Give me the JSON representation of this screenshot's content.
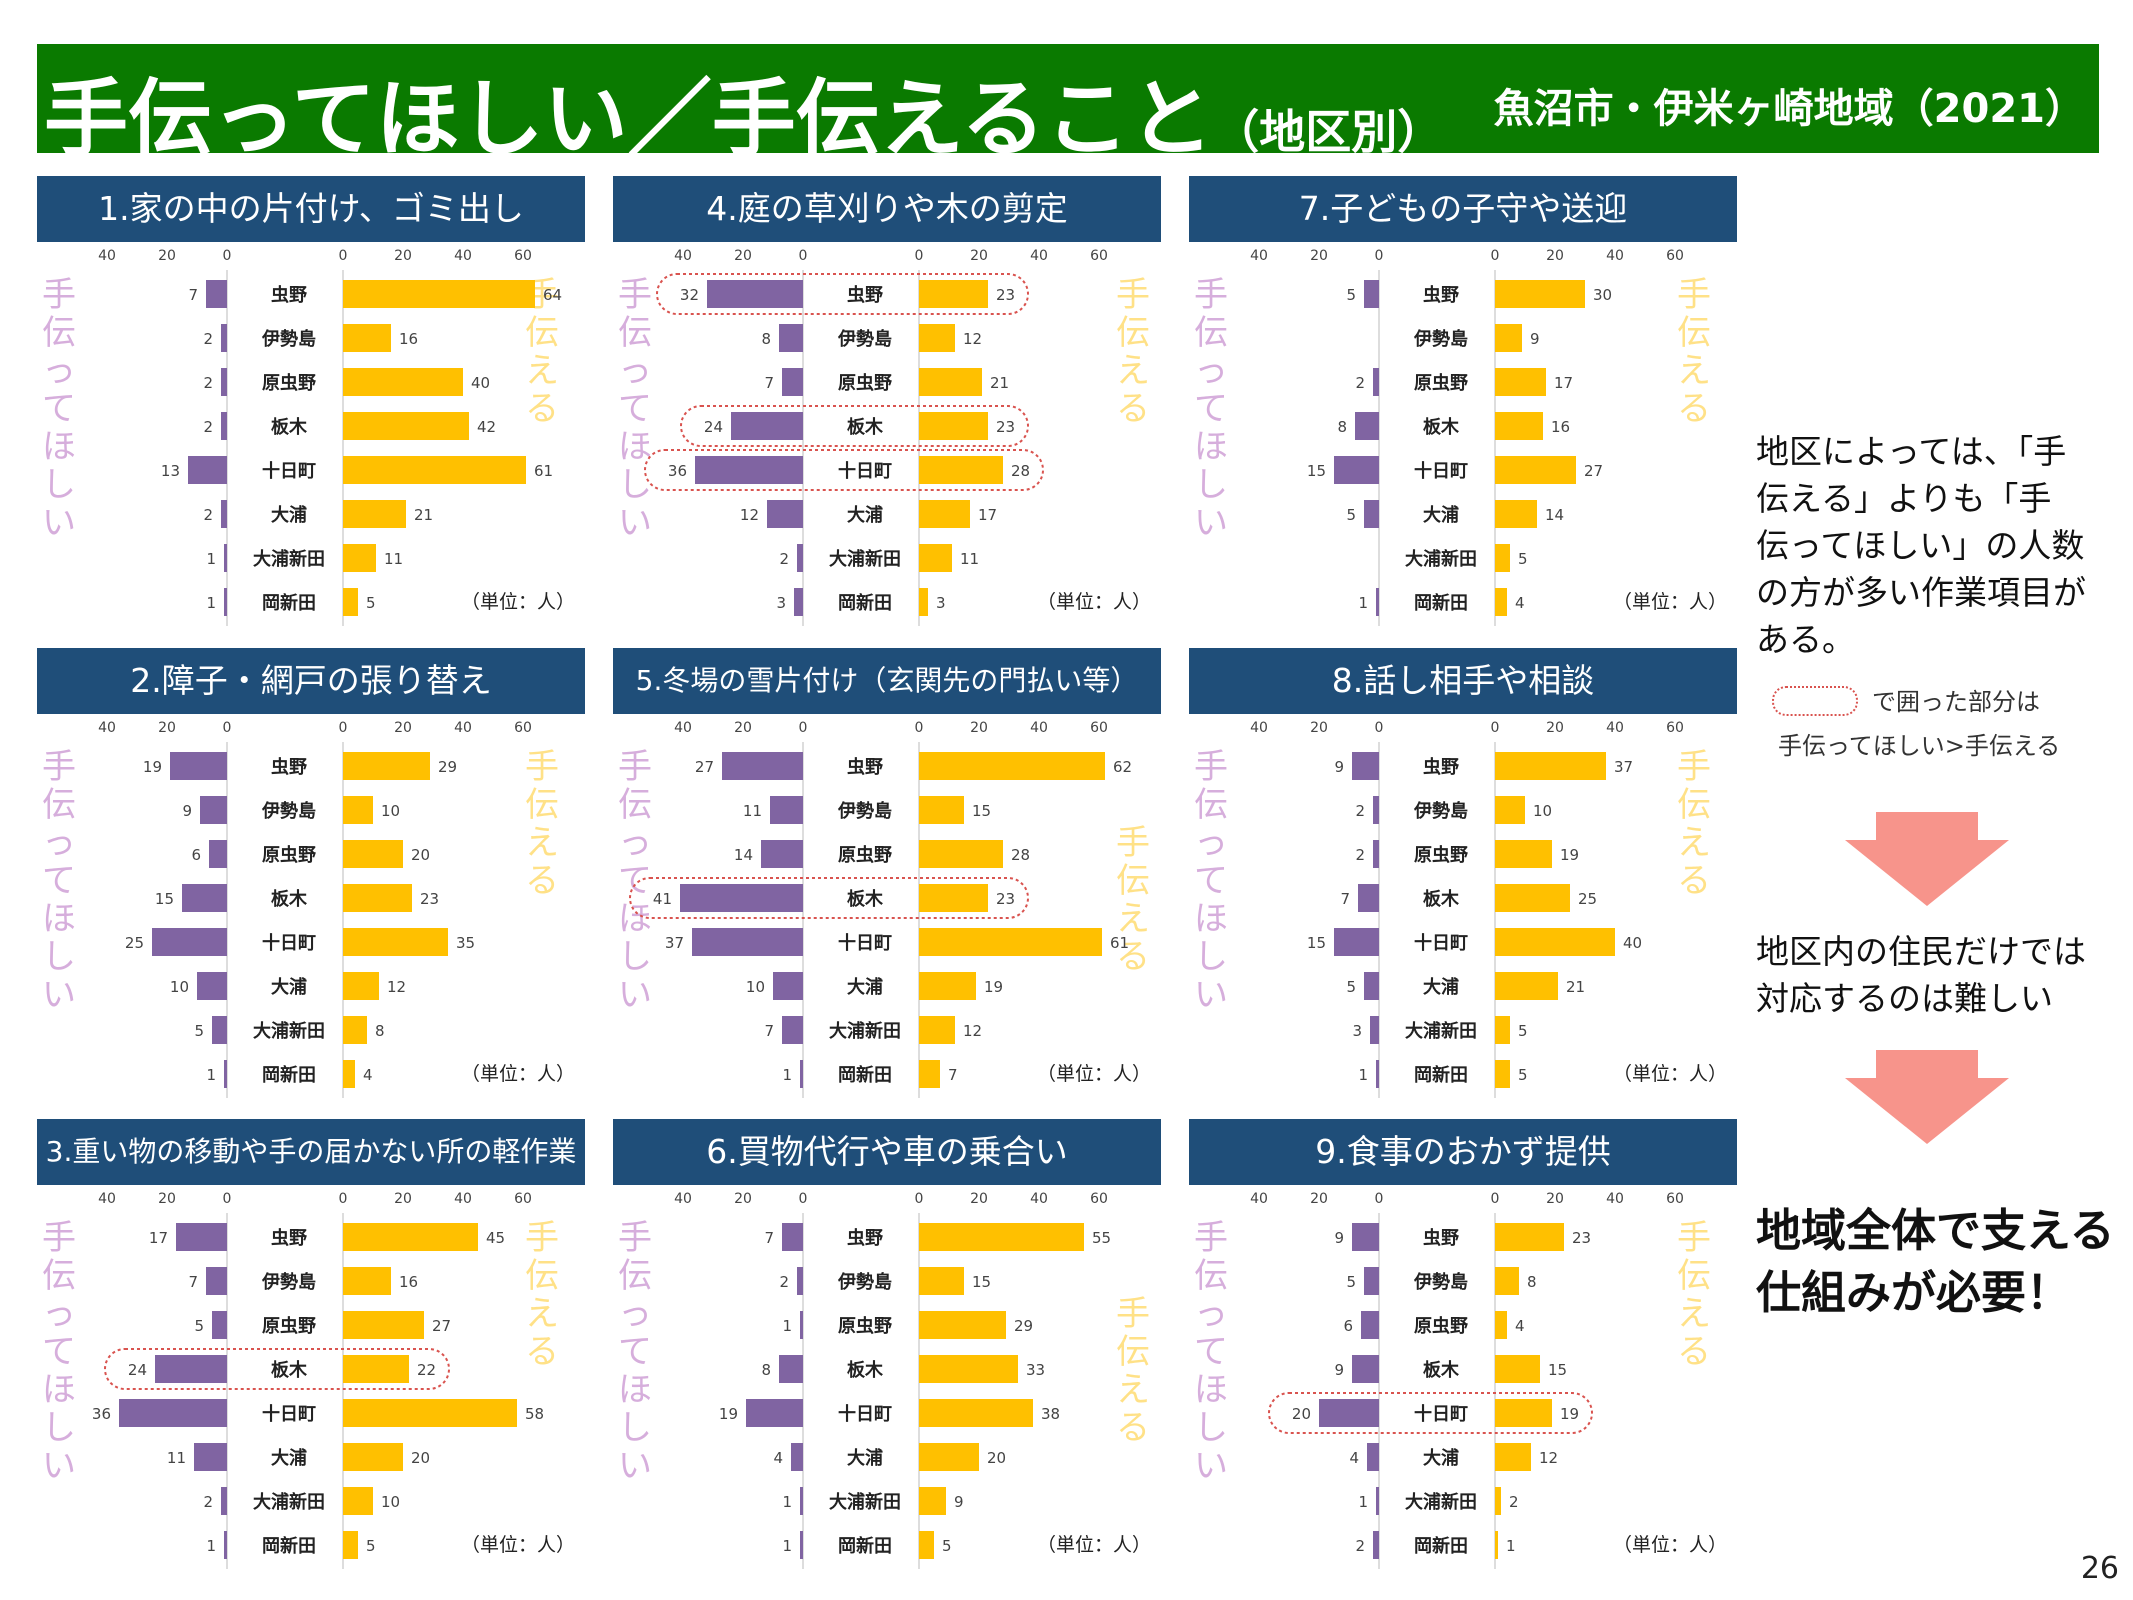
{
  "header": {
    "title_main": "手伝ってほしい／手伝えること",
    "title_sub": "（地区別）",
    "title_right": "魚沼市・伊米ヶ崎地域（2021）"
  },
  "labels": {
    "want": "手伝ってほしい",
    "can": "手伝える",
    "unit": "（単位：人）"
  },
  "colors": {
    "want": "#8064a2",
    "can": "#ffc000",
    "header": "#0a7a00",
    "panel_head": "#1f4e79",
    "highlight": "#d9534f"
  },
  "sidebar": {
    "note_lines": [
      "地区によっては、「手",
      "伝える」よりも「手",
      "伝ってほしい」の人数",
      "の方が多い作業項目が",
      "ある。"
    ],
    "legend_text": "で囲った部分は",
    "legend_text2": "手伝ってほしい>手伝える",
    "middle_lines": [
      "地区内の住民だけでは",
      "対応するのは難しい"
    ],
    "conclusion_lines": [
      "地域全体で支える",
      "仕組みが必要！"
    ]
  },
  "page_number": "26",
  "chart_data": [
    {
      "type": "bar",
      "title": "1.家の中の片付け、ゴミ出し",
      "categories": [
        "虫野",
        "伊勢島",
        "原虫野",
        "板木",
        "十日町",
        "大浦",
        "大浦新田",
        "岡新田"
      ],
      "series": [
        {
          "name": "手伝ってほしい",
          "values": [
            7,
            2,
            2,
            2,
            13,
            2,
            1,
            1
          ]
        },
        {
          "name": "手伝える",
          "values": [
            64,
            16,
            40,
            42,
            61,
            21,
            11,
            5
          ]
        }
      ],
      "left_ticks": [
        "40",
        "20",
        "0"
      ],
      "right_ticks": [
        "0",
        "20",
        "40",
        "60"
      ],
      "highlight": []
    },
    {
      "type": "bar",
      "title": "4.庭の草刈りや木の剪定",
      "categories": [
        "虫野",
        "伊勢島",
        "原虫野",
        "板木",
        "十日町",
        "大浦",
        "大浦新田",
        "岡新田"
      ],
      "series": [
        {
          "name": "手伝ってほしい",
          "values": [
            32,
            8,
            7,
            24,
            36,
            12,
            2,
            3
          ]
        },
        {
          "name": "手伝える",
          "values": [
            23,
            12,
            21,
            23,
            28,
            17,
            11,
            3
          ]
        }
      ],
      "left_ticks": [
        "40",
        "20",
        "0"
      ],
      "right_ticks": [
        "0",
        "20",
        "40",
        "60"
      ],
      "highlight": [
        0,
        3,
        4
      ]
    },
    {
      "type": "bar",
      "title": "7.子どもの子守や送迎",
      "categories": [
        "虫野",
        "伊勢島",
        "原虫野",
        "板木",
        "十日町",
        "大浦",
        "大浦新田",
        "岡新田"
      ],
      "series": [
        {
          "name": "手伝ってほしい",
          "values": [
            5,
            null,
            2,
            8,
            15,
            5,
            null,
            1
          ]
        },
        {
          "name": "手伝える",
          "values": [
            30,
            9,
            17,
            16,
            27,
            14,
            5,
            4
          ]
        }
      ],
      "left_ticks": [
        "40",
        "20",
        "0"
      ],
      "right_ticks": [
        "0",
        "20",
        "40",
        "60"
      ],
      "highlight": []
    },
    {
      "type": "bar",
      "title": "2.障子・網戸の張り替え",
      "categories": [
        "虫野",
        "伊勢島",
        "原虫野",
        "板木",
        "十日町",
        "大浦",
        "大浦新田",
        "岡新田"
      ],
      "series": [
        {
          "name": "手伝ってほしい",
          "values": [
            19,
            9,
            6,
            15,
            25,
            10,
            5,
            1
          ]
        },
        {
          "name": "手伝える",
          "values": [
            29,
            10,
            20,
            23,
            35,
            12,
            8,
            4
          ]
        }
      ],
      "left_ticks": [
        "40",
        "20",
        "0"
      ],
      "right_ticks": [
        "0",
        "20",
        "40",
        "60"
      ],
      "highlight": []
    },
    {
      "type": "bar",
      "title": "5.冬場の雪片付け（玄関先の門払い等）",
      "categories": [
        "虫野",
        "伊勢島",
        "原虫野",
        "板木",
        "十日町",
        "大浦",
        "大浦新田",
        "岡新田"
      ],
      "series": [
        {
          "name": "手伝ってほしい",
          "values": [
            27,
            11,
            14,
            41,
            37,
            10,
            7,
            1
          ]
        },
        {
          "name": "手伝える",
          "values": [
            62,
            15,
            28,
            23,
            61,
            19,
            12,
            7
          ]
        }
      ],
      "left_ticks": [
        "40",
        "20",
        "0"
      ],
      "right_ticks": [
        "0",
        "20",
        "40",
        "60"
      ],
      "highlight": [
        3
      ]
    },
    {
      "type": "bar",
      "title": "8.話し相手や相談",
      "categories": [
        "虫野",
        "伊勢島",
        "原虫野",
        "板木",
        "十日町",
        "大浦",
        "大浦新田",
        "岡新田"
      ],
      "series": [
        {
          "name": "手伝ってほしい",
          "values": [
            9,
            2,
            2,
            7,
            15,
            5,
            3,
            1
          ]
        },
        {
          "name": "手伝える",
          "values": [
            37,
            10,
            19,
            25,
            40,
            21,
            5,
            5
          ]
        }
      ],
      "left_ticks": [
        "40",
        "20",
        "0"
      ],
      "right_ticks": [
        "0",
        "20",
        "40",
        "60"
      ],
      "highlight": []
    },
    {
      "type": "bar",
      "title": "3.重い物の移動や手の届かない所の軽作業",
      "categories": [
        "虫野",
        "伊勢島",
        "原虫野",
        "板木",
        "十日町",
        "大浦",
        "大浦新田",
        "岡新田"
      ],
      "series": [
        {
          "name": "手伝ってほしい",
          "values": [
            17,
            7,
            5,
            24,
            36,
            11,
            2,
            1
          ]
        },
        {
          "name": "手伝える",
          "values": [
            45,
            16,
            27,
            22,
            58,
            20,
            10,
            5
          ]
        }
      ],
      "left_ticks": [
        "40",
        "20",
        "0"
      ],
      "right_ticks": [
        "0",
        "20",
        "40",
        "60"
      ],
      "highlight": [
        3
      ]
    },
    {
      "type": "bar",
      "title": "6.買物代行や車の乗合い",
      "categories": [
        "虫野",
        "伊勢島",
        "原虫野",
        "板木",
        "十日町",
        "大浦",
        "大浦新田",
        "岡新田"
      ],
      "series": [
        {
          "name": "手伝ってほしい",
          "values": [
            7,
            2,
            1,
            8,
            19,
            4,
            1,
            1
          ]
        },
        {
          "name": "手伝える",
          "values": [
            55,
            15,
            29,
            33,
            38,
            20,
            9,
            5
          ]
        }
      ],
      "left_ticks": [
        "40",
        "20",
        "0"
      ],
      "right_ticks": [
        "0",
        "20",
        "40",
        "60"
      ],
      "highlight": []
    },
    {
      "type": "bar",
      "title": "9.食事のおかず提供",
      "categories": [
        "虫野",
        "伊勢島",
        "原虫野",
        "板木",
        "十日町",
        "大浦",
        "大浦新田",
        "岡新田"
      ],
      "series": [
        {
          "name": "手伝ってほしい",
          "values": [
            9,
            5,
            6,
            9,
            20,
            4,
            1,
            2
          ]
        },
        {
          "name": "手伝える",
          "values": [
            23,
            8,
            4,
            15,
            19,
            12,
            2,
            1
          ]
        }
      ],
      "left_ticks": [
        "40",
        "20",
        "0"
      ],
      "right_ticks": [
        "0",
        "20",
        "40",
        "60"
      ],
      "highlight": [
        4
      ]
    }
  ]
}
